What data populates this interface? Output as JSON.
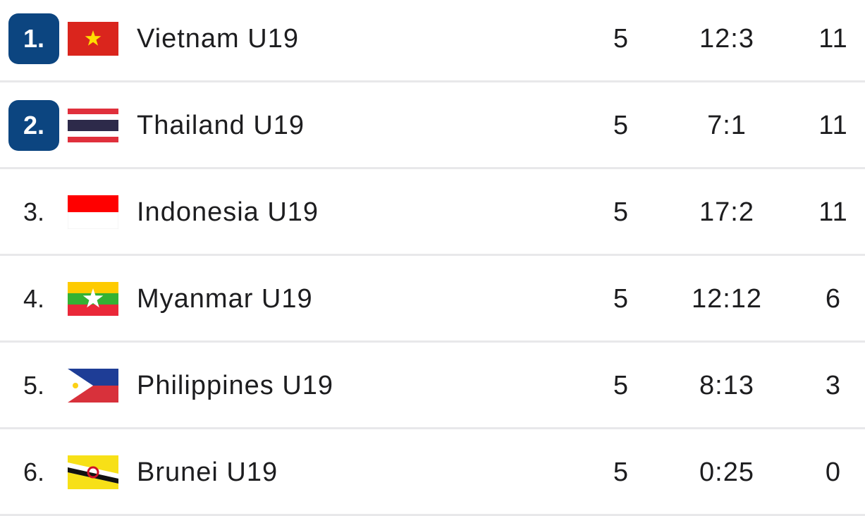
{
  "table": {
    "rows": [
      [
        "1.",
        "Vietnam U19",
        5,
        "12:3",
        11
      ],
      [
        "2.",
        "Thailand U19",
        5,
        "7:1",
        11
      ],
      [
        "3.",
        "Indonesia U19",
        5,
        "17:2",
        11
      ],
      [
        "4.",
        "Myanmar U19",
        5,
        "12:12",
        6
      ],
      [
        "5.",
        "Philippines U19",
        5,
        "8:13",
        3
      ],
      [
        "6.",
        "Brunei U19",
        5,
        "0:25",
        0
      ]
    ]
  }
}
